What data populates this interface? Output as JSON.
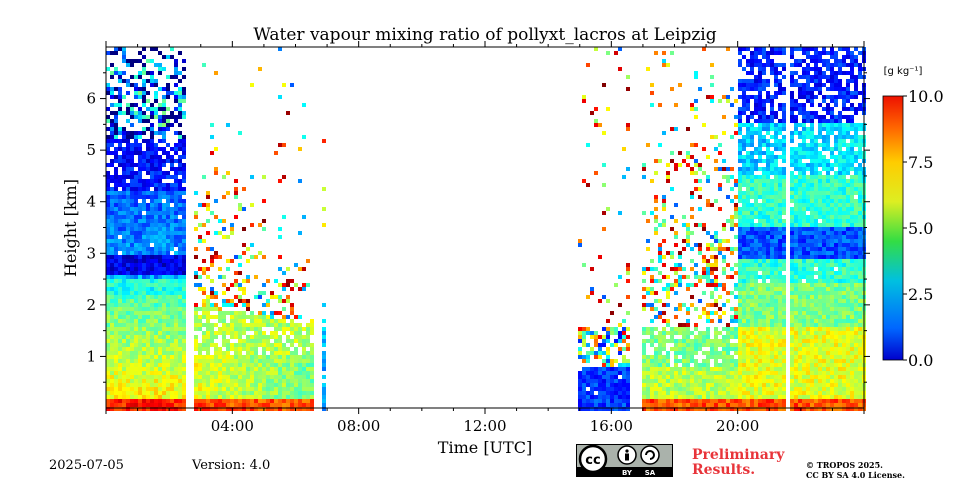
{
  "chart_data": {
    "type": "heatmap",
    "title": "Water vapour mixing ratio of pollyxt_lacros at Leipzig",
    "xlabel": "Time [UTC]",
    "ylabel": "Height [km]",
    "xlim": [
      0,
      24
    ],
    "ylim": [
      0,
      7
    ],
    "x_tick_labels": [
      "04:00",
      "08:00",
      "12:00",
      "16:00",
      "20:00"
    ],
    "x_ticks_hours": [
      4,
      8,
      12,
      16,
      20
    ],
    "y_ticks": [
      1,
      2,
      3,
      4,
      5,
      6
    ],
    "colorbar": {
      "label": "[g kg⁻¹]",
      "min": 0.0,
      "max": 10.0,
      "ticks": [
        "0.0",
        "2.5",
        "5.0",
        "7.5",
        "10.0"
      ],
      "colormap": "jet"
    },
    "data_gaps_utc": [
      [
        2.5,
        2.8
      ],
      [
        6.6,
        6.8
      ],
      [
        7.0,
        15.0
      ],
      [
        16.65,
        16.95
      ],
      [
        21.5,
        21.7
      ]
    ],
    "segments_approx": [
      {
        "t": [
          0.0,
          2.5
        ],
        "low_g_kg": 6.5,
        "mid_g_kg": 2.0,
        "moist_layer_top_km": 2.2,
        "dry_band_km": 2.8
      },
      {
        "t": [
          2.8,
          6.6
        ],
        "low_g_kg": 6.0,
        "signal_top_km": 2.0
      },
      {
        "t": [
          15.0,
          16.65
        ],
        "low_g_kg": 1.5,
        "signal_top_km": 1.5
      },
      {
        "t": [
          16.95,
          20.0
        ],
        "low_g_kg": 5.5,
        "signal_top_km": 1.5
      },
      {
        "t": [
          20.0,
          24.0
        ],
        "low_g_kg": 5.5,
        "mid_g_kg": 4.0,
        "dry_band_km": 3.2
      }
    ]
  },
  "footer": {
    "date": "2025-07-05",
    "version": "Version: 4.0",
    "preliminary_line1": "Preliminary",
    "preliminary_line2": "Results.",
    "copyright_line1": "© TROPOS 2025.",
    "copyright_line2": "CC BY SA 4.0 License.",
    "cc_text": "cc",
    "by_text": "BY",
    "sa_text": "SA"
  }
}
